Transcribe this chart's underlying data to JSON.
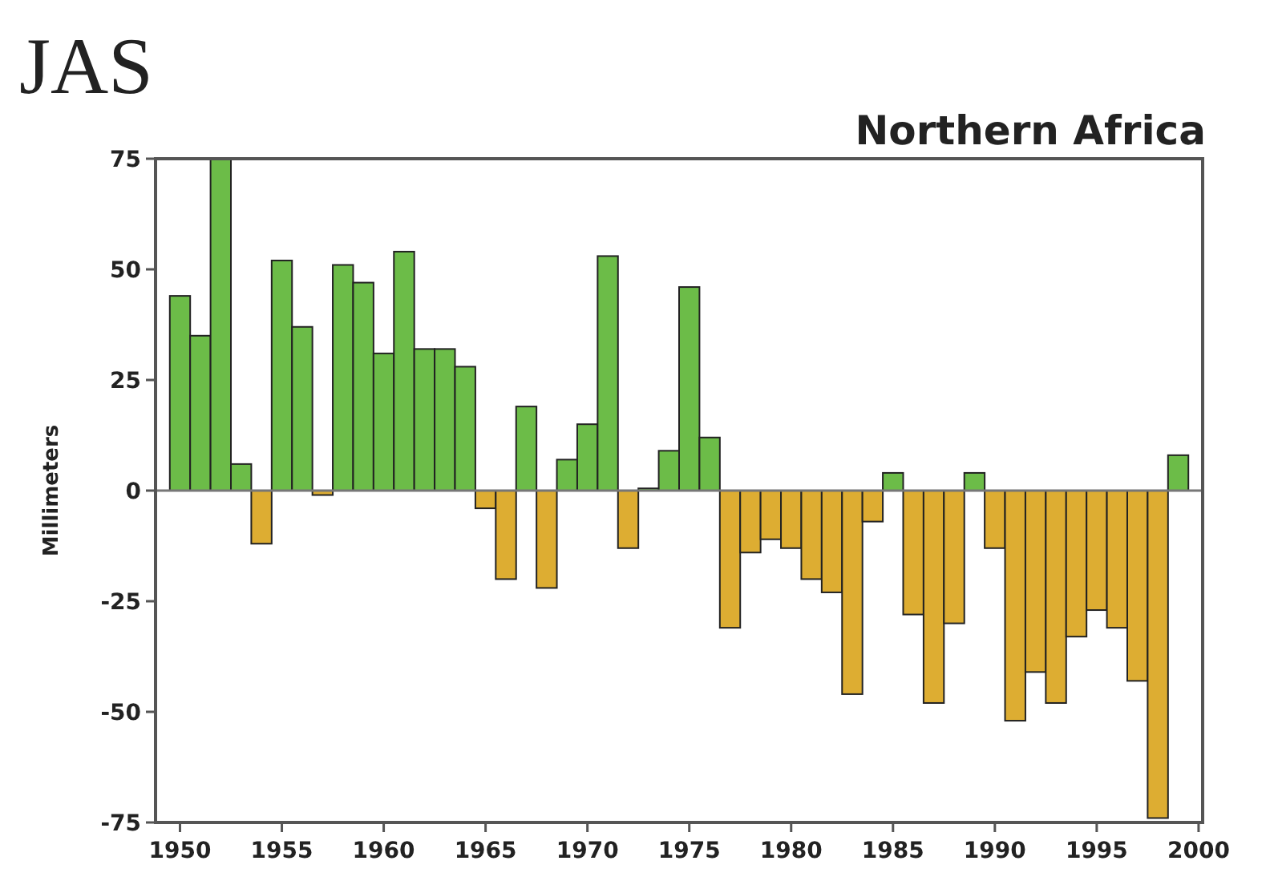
{
  "chart_data": {
    "type": "bar",
    "title": "JAS",
    "subtitle": "Northern Africa",
    "ylabel": "Millimeters",
    "x": [
      1950,
      1951,
      1952,
      1953,
      1954,
      1955,
      1956,
      1957,
      1958,
      1959,
      1960,
      1961,
      1962,
      1963,
      1964,
      1965,
      1966,
      1967,
      1968,
      1969,
      1970,
      1971,
      1972,
      1973,
      1974,
      1975,
      1976,
      1977,
      1978,
      1979,
      1980,
      1981,
      1982,
      1983,
      1984,
      1985,
      1986,
      1987,
      1988,
      1989,
      1990,
      1991,
      1992,
      1993,
      1994,
      1995,
      1996,
      1997,
      1998,
      1999
    ],
    "values": [
      44,
      35,
      75,
      6,
      -12,
      52,
      37,
      -1,
      51,
      47,
      31,
      54,
      32,
      32,
      28,
      -4,
      -20,
      19,
      -22,
      7,
      15,
      53,
      -13,
      0.5,
      9,
      46,
      12,
      -31,
      -14,
      -11,
      -13,
      -20,
      -23,
      -46,
      -7,
      4,
      -28,
      -48,
      -30,
      4,
      -13,
      -52,
      -41,
      -48,
      -33,
      -27,
      -31,
      -43,
      -74,
      8
    ],
    "colors": [
      "#6cbc48",
      "#6cbc48",
      "#6cbc48",
      "#6cbc48",
      "#ddad32",
      "#6cbc48",
      "#6cbc48",
      "#ddad32",
      "#6cbc48",
      "#6cbc48",
      "#6cbc48",
      "#6cbc48",
      "#6cbc48",
      "#6cbc48",
      "#6cbc48",
      "#ddad32",
      "#ddad32",
      "#6cbc48",
      "#ddad32",
      "#6cbc48",
      "#6cbc48",
      "#6cbc48",
      "#ddad32",
      "#6cbc48",
      "#6cbc48",
      "#6cbc48",
      "#6cbc48",
      "#ddad32",
      "#ddad32",
      "#ddad32",
      "#ddad32",
      "#ddad32",
      "#ddad32",
      "#ddad32",
      "#ddad32",
      "#6cbc48",
      "#ddad32",
      "#ddad32",
      "#ddad32",
      "#6cbc48",
      "#ddad32",
      "#ddad32",
      "#ddad32",
      "#ddad32",
      "#ddad32",
      "#ddad32",
      "#ddad32",
      "#ddad32",
      "#ddad32",
      "#6cbc48"
    ],
    "xlim": [
      1948.8,
      2000.2
    ],
    "xticks": [
      1950,
      1955,
      1960,
      1965,
      1970,
      1975,
      1980,
      1985,
      1990,
      1995,
      2000
    ],
    "ylim": [
      -75,
      75
    ],
    "yticks": [
      -75,
      -50,
      -25,
      0,
      25,
      50,
      75
    ]
  }
}
